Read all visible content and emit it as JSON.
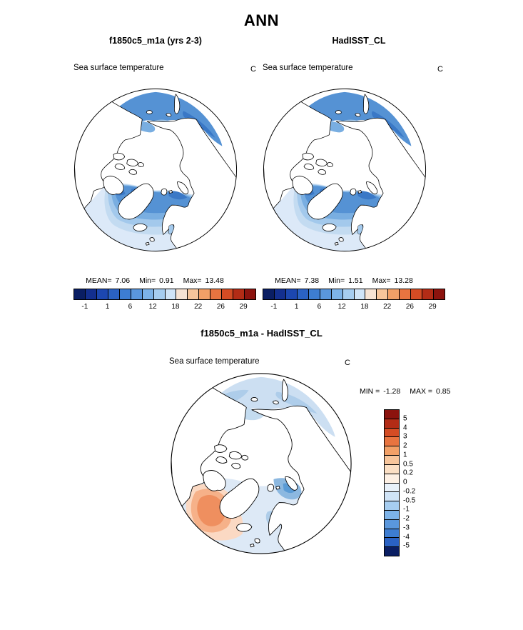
{
  "header": {
    "title": "ANN"
  },
  "panels": {
    "model": {
      "title": "f1850c5_m1a (yrs 2-3)",
      "field": "Sea surface temperature",
      "units": "C",
      "stats": {
        "mean_label": "MEAN=",
        "mean": "7.06",
        "min_label": "Min=",
        "min": "0.91",
        "max_label": "Max=",
        "max": "13.48"
      }
    },
    "obs": {
      "title": "HadISST_CL",
      "field": "Sea surface temperature",
      "units": "C",
      "stats": {
        "mean_label": "MEAN=",
        "mean": "7.38",
        "min_label": "Min=",
        "min": "1.51",
        "max_label": "Max=",
        "max": "13.28"
      }
    },
    "diff": {
      "title": "f1850c5_m1a - HadISST_CL",
      "field": "Sea surface temperature",
      "units": "C",
      "range": {
        "min_label": "MIN =",
        "min": "-1.28",
        "max_label": "MAX =",
        "max": "0.85"
      }
    }
  },
  "colorbar_sst": {
    "colors": [
      "#0a1e63",
      "#132f8f",
      "#1c47b0",
      "#2a62c4",
      "#3d7dd2",
      "#5a97dd",
      "#7db3e8",
      "#a6cdf0",
      "#d0e4f7",
      "#f7e3d3",
      "#f7c59b",
      "#f2a067",
      "#e87440",
      "#d44c24",
      "#b32c16",
      "#8c130e"
    ],
    "ticks": [
      {
        "label": "-1",
        "boundary": 1
      },
      {
        "label": "1",
        "boundary": 3
      },
      {
        "label": "6",
        "boundary": 5
      },
      {
        "label": "12",
        "boundary": 7
      },
      {
        "label": "18",
        "boundary": 9
      },
      {
        "label": "22",
        "boundary": 11
      },
      {
        "label": "26",
        "boundary": 13
      },
      {
        "label": "29",
        "boundary": 15
      }
    ]
  },
  "colorbar_diff": {
    "colors": [
      "#8c130e",
      "#b32c16",
      "#d44c24",
      "#e87440",
      "#f2a067",
      "#f7c59b",
      "#fbdfc4",
      "#fdf0e4",
      "#e8f1fa",
      "#d0e4f7",
      "#a6cdf0",
      "#7db3e8",
      "#5a97dd",
      "#3d7dd2",
      "#2a62c4",
      "#0a1e63"
    ],
    "ticks": [
      {
        "label": "5",
        "boundary": 1
      },
      {
        "label": "4",
        "boundary": 2
      },
      {
        "label": "3",
        "boundary": 3
      },
      {
        "label": "2",
        "boundary": 4
      },
      {
        "label": "1",
        "boundary": 5
      },
      {
        "label": "0.5",
        "boundary": 6
      },
      {
        "label": "0.2",
        "boundary": 7
      },
      {
        "label": "0",
        "boundary": 8
      },
      {
        "label": "-0.2",
        "boundary": 9
      },
      {
        "label": "-0.5",
        "boundary": 10
      },
      {
        "label": "-1",
        "boundary": 11
      },
      {
        "label": "-2",
        "boundary": 12
      },
      {
        "label": "-3",
        "boundary": 13
      },
      {
        "label": "-4",
        "boundary": 14
      },
      {
        "label": "-5",
        "boundary": 15
      }
    ]
  },
  "chart_data": [
    {
      "type": "map-contour",
      "projection": "north-polar-stereographic",
      "season": "ANN",
      "title": "f1850c5_m1a (yrs 2-3)",
      "variable": "Sea surface temperature",
      "units": "C",
      "mean": 7.06,
      "min": 0.91,
      "max": 13.48,
      "colorbar_labels": [
        -1,
        1,
        6,
        12,
        18,
        22,
        26,
        29
      ],
      "legend_position": "bottom-horizontal"
    },
    {
      "type": "map-contour",
      "projection": "north-polar-stereographic",
      "season": "ANN",
      "title": "HadISST_CL",
      "variable": "Sea surface temperature",
      "units": "C",
      "mean": 7.38,
      "min": 1.51,
      "max": 13.28,
      "colorbar_labels": [
        -1,
        1,
        6,
        12,
        18,
        22,
        26,
        29
      ],
      "legend_position": "bottom-horizontal"
    },
    {
      "type": "map-contour",
      "projection": "north-polar-stereographic",
      "season": "ANN",
      "title": "f1850c5_m1a - HadISST_CL",
      "variable": "Sea surface temperature",
      "units": "C",
      "min": -1.28,
      "max": 0.85,
      "colorbar_labels": [
        5,
        4,
        3,
        2,
        1,
        0.5,
        0.2,
        0,
        -0.2,
        -0.5,
        -1,
        -2,
        -3,
        -4,
        -5
      ],
      "legend_position": "right-vertical"
    }
  ]
}
